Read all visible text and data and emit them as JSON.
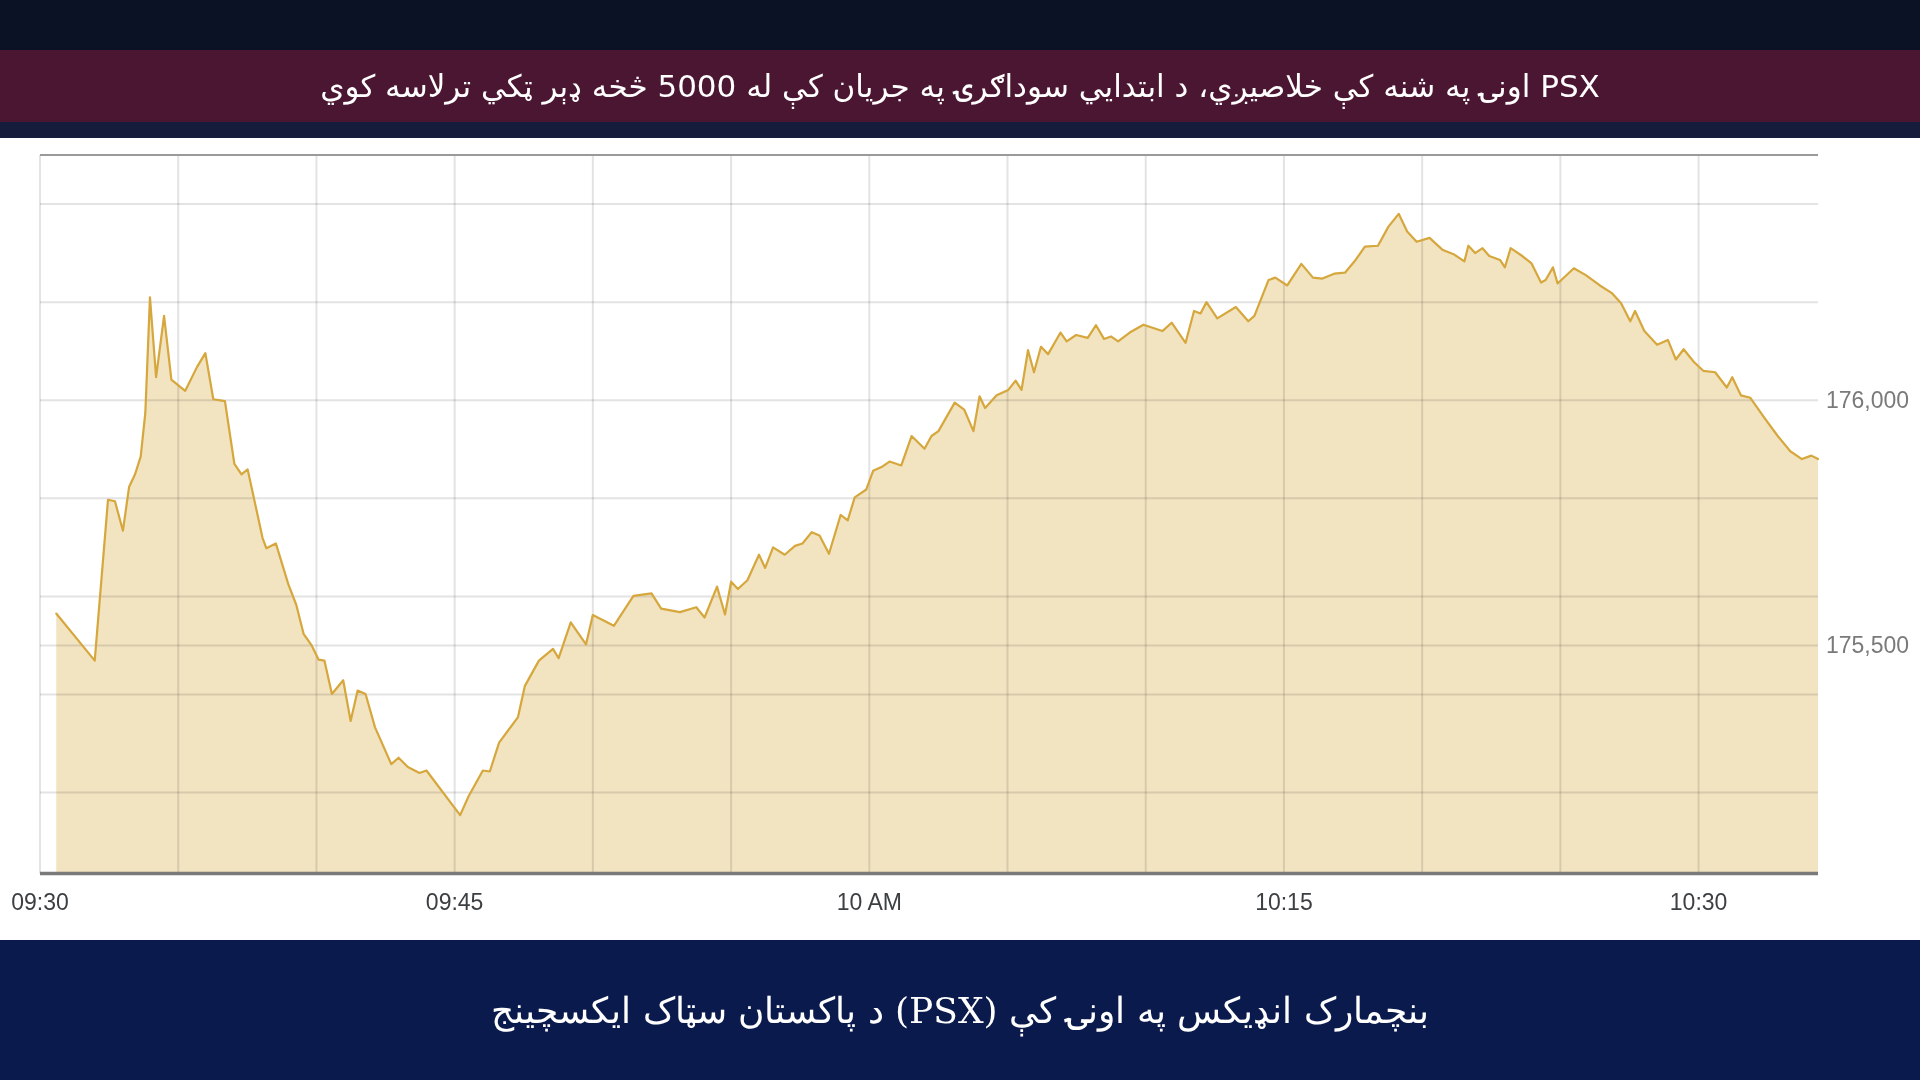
{
  "chart_data": {
    "type": "area",
    "title": "PSX اونۍ په شنه کې خلاصیږي، د ابتدايي سوداګرۍ په جریان کې له 5000 څخه ډېر ټکي ترلاسه کوي",
    "annotations": [
      "بنچمارک انډیکس په اونۍ کې (PSX) د پاکستان سټاک ایکسچینج"
    ],
    "x": [
      9.5098,
      9.533,
      9.541,
      9.5452,
      9.55,
      9.5537,
      9.5573,
      9.5607,
      9.5635,
      9.5663,
      9.57,
      9.5748,
      9.5792,
      9.5875,
      9.5947,
      9.5997,
      9.6045,
      9.6115,
      9.6172,
      9.6215,
      9.6252,
      9.6342,
      9.6365,
      9.6422,
      9.6497,
      9.6545,
      9.659,
      9.6638,
      9.668,
      9.6715,
      9.676,
      9.6828,
      9.6873,
      9.6915,
      9.6963,
      9.702,
      9.7118,
      9.7162,
      9.7218,
      9.7288,
      9.733,
      9.7533,
      9.7585,
      9.767,
      9.7712,
      9.7768,
      9.7882,
      9.7923,
      9.8008,
      9.8093,
      9.8127,
      9.82,
      9.8292,
      9.8333,
      9.846,
      9.8578,
      9.8687,
      9.8745,
      9.8858,
      9.8957,
      9.9007,
      9.9082,
      9.913,
      9.9167,
      9.9208,
      9.9265,
      9.9335,
      9.9372,
      9.942,
      9.949,
      9.9552,
      9.9597,
      9.9653,
      9.97,
      9.9757,
      9.9827,
      9.987,
      9.9912,
      9.9982,
      10.0023,
      10.008,
      10.0122,
      10.0193,
      10.0255,
      10.0333,
      10.0375,
      10.0417,
      10.0515,
      10.0572,
      10.0628,
      10.0665,
      10.0698,
      10.0768,
      10.0838,
      10.0882,
      10.0918,
      10.0957,
      10.0993,
      10.1035,
      10.1078,
      10.1153,
      10.119,
      10.1247,
      10.1317,
      10.1367,
      10.1415,
      10.1457,
      10.15,
      10.157,
      10.1653,
      10.1767,
      10.1823,
      10.1907,
      10.1958,
      10.1997,
      10.2033,
      10.2098,
      10.221,
      10.2285,
      10.2322,
      10.2407,
      10.2448,
      10.252,
      10.2605,
      10.2675,
      10.2732,
      10.2803,
      10.2868,
      10.2932,
      10.2988,
      10.3067,
      10.313,
      10.3192,
      10.3243,
      10.33,
      10.3378,
      10.3455,
      10.3527,
      10.3588,
      10.3612,
      10.3653,
      10.3697,
      10.3738,
      10.3803,
      10.3832,
      10.3867,
      10.3937,
      10.3993,
      10.405,
      10.4078,
      10.4122,
      10.415,
      10.4248,
      10.432,
      10.4405,
      10.4475,
      10.4532,
      10.4588,
      10.4617,
      10.4673,
      10.475,
      10.4815,
      10.4863,
      10.491,
      10.4972,
      10.5028,
      10.51,
      10.517,
      10.5203,
      10.5255,
      10.5312,
      10.5397,
      10.5477,
      10.5553,
      10.5623,
      10.568,
      10.572
    ],
    "series": [
      {
        "color": "#f2e3c1",
        "values": [
          175565,
          175469,
          175797,
          175794,
          175734,
          175823,
          175849,
          175885,
          175974,
          176210,
          176047,
          176172,
          176042,
          176019,
          176068,
          176096,
          176002,
          175998,
          175870,
          175849,
          175859,
          175719,
          175698,
          175708,
          175625,
          175583,
          175523,
          175500,
          175471,
          175469,
          175401,
          175429,
          175346,
          175408,
          175401,
          175333,
          175258,
          175271,
          175252,
          175240,
          175245,
          175154,
          175193,
          175245,
          175243,
          175302,
          175354,
          175417,
          175469,
          175493,
          175474,
          175547,
          175502,
          175562,
          175540,
          175601,
          175606,
          175575,
          175568,
          175578,
          175557,
          175620,
          175563,
          175630,
          175615,
          175633,
          175685,
          175658,
          175700,
          175685,
          175703,
          175708,
          175731,
          175724,
          175687,
          175766,
          175755,
          175802,
          175818,
          175856,
          175865,
          175875,
          175867,
          175927,
          175901,
          175927,
          175937,
          175995,
          175981,
          175937,
          176008,
          175984,
          176010,
          176021,
          176040,
          176021,
          176102,
          176057,
          176109,
          176094,
          176138,
          176120,
          176133,
          176127,
          176153,
          176125,
          176130,
          176120,
          176138,
          176154,
          176141,
          176158,
          176117,
          176182,
          176177,
          176200,
          176167,
          176190,
          176161,
          176172,
          176245,
          176250,
          176234,
          176278,
          176250,
          176248,
          176258,
          176260,
          176286,
          176313,
          176315,
          176354,
          176380,
          176344,
          176323,
          176331,
          176307,
          176297,
          176283,
          176315,
          176300,
          176310,
          176294,
          176286,
          176271,
          176310,
          176294,
          176279,
          176240,
          176245,
          176271,
          176238,
          176269,
          176255,
          176234,
          176219,
          176198,
          176161,
          176182,
          176141,
          176113,
          176123,
          176083,
          176104,
          176078,
          176060,
          176057,
          176026,
          176047,
          176010,
          176005,
          175964,
          175927,
          175896,
          175880,
          175887,
          175880
        ]
      }
    ],
    "xlim": [
      9.5,
      10.572
    ],
    "xticks": [
      {
        "value": 9.5,
        "label": "09:30"
      },
      {
        "value": 9.583333,
        "label": null
      },
      {
        "value": 9.666667,
        "label": null
      },
      {
        "value": 9.75,
        "label": "09:45"
      },
      {
        "value": 9.833333,
        "label": null
      },
      {
        "value": 9.916667,
        "label": null
      },
      {
        "value": 10,
        "label": "10 AM"
      },
      {
        "value": 10.083333,
        "label": null
      },
      {
        "value": 10.166667,
        "label": null
      },
      {
        "value": 10.25,
        "label": "10:15"
      },
      {
        "value": 10.333333,
        "label": null
      },
      {
        "value": 10.416667,
        "label": null
      },
      {
        "value": 10.5,
        "label": "10:30"
      }
    ],
    "ylim": [
      175035,
      176500
    ],
    "yticks": [
      {
        "value": 175200,
        "label": null
      },
      {
        "value": 175400,
        "label": null
      },
      {
        "value": 175500,
        "label": "175,500"
      },
      {
        "value": 175600,
        "label": null
      },
      {
        "value": 175800,
        "label": null
      },
      {
        "value": 176000,
        "label": "176,000"
      },
      {
        "value": 176200,
        "label": null
      },
      {
        "value": 176400,
        "label": null
      }
    ],
    "grid": true
  }
}
